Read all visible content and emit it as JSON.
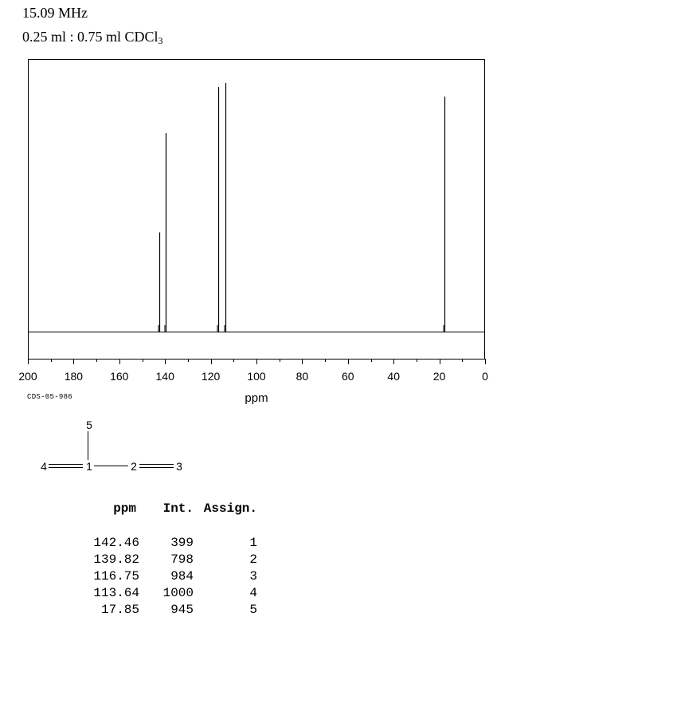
{
  "header": {
    "frequency": "15.09 MHz",
    "solvent_prefix": "0.25 ml : 0.75 ml CDCl",
    "solvent_subscript": "3"
  },
  "spectrum_code": "CDS-05-986",
  "chart_data": {
    "type": "line",
    "xlabel": "ppm",
    "xlim": [
      200,
      0
    ],
    "xticks": [
      200,
      180,
      160,
      140,
      120,
      100,
      80,
      60,
      40,
      20,
      0
    ],
    "xtick_labels": [
      "200",
      "180",
      "160",
      "140",
      "120",
      "100",
      "80",
      "60",
      "40",
      "20",
      "0"
    ],
    "minor_tick_step": 10,
    "peaks": [
      {
        "ppm": 142.46,
        "intensity": 399
      },
      {
        "ppm": 139.82,
        "intensity": 798
      },
      {
        "ppm": 116.75,
        "intensity": 984
      },
      {
        "ppm": 113.64,
        "intensity": 1000
      },
      {
        "ppm": 17.85,
        "intensity": 945
      }
    ]
  },
  "structure": {
    "atoms": [
      "1",
      "2",
      "3",
      "4",
      "5"
    ]
  },
  "table": {
    "headers": [
      "ppm",
      "Int.",
      "Assign."
    ],
    "rows": [
      [
        "142.46",
        "399",
        "1"
      ],
      [
        "139.82",
        "798",
        "2"
      ],
      [
        "116.75",
        "984",
        "3"
      ],
      [
        "113.64",
        "1000",
        "4"
      ],
      [
        "17.85",
        "945",
        "5"
      ]
    ]
  }
}
